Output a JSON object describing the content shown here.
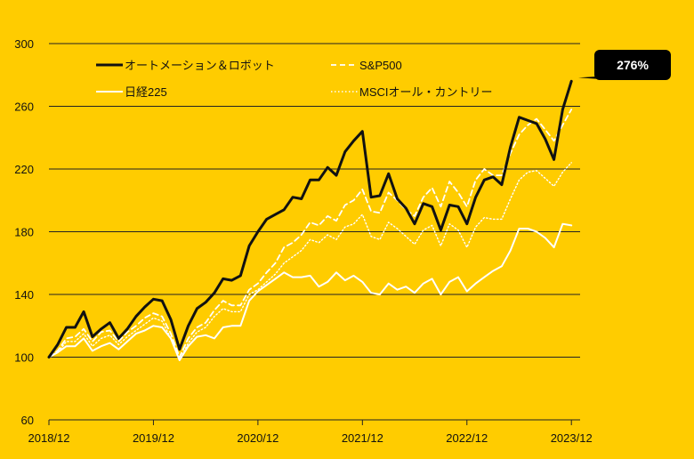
{
  "chart_data": {
    "type": "line",
    "title": "",
    "xlabel": "",
    "ylabel": "",
    "ylim": [
      60,
      300
    ],
    "yticks": [
      60,
      100,
      140,
      180,
      220,
      260,
      300
    ],
    "xlim": [
      0,
      61
    ],
    "xticks": [
      {
        "label": "2018/12",
        "x": 0
      },
      {
        "label": "2019/12",
        "x": 12
      },
      {
        "label": "2020/12",
        "x": 24
      },
      {
        "label": "2021/12",
        "x": 36
      },
      {
        "label": "2022/12",
        "x": 48
      },
      {
        "label": "2023/12",
        "x": 60
      }
    ],
    "grid": "horizontal",
    "legend_position": "top",
    "annotation": {
      "text": "276%",
      "series": "オートメーション＆ロボット",
      "x": 61,
      "y": 276
    },
    "series": [
      {
        "name": "オートメーション＆ロボット",
        "color": "#111111",
        "style": "solid-bold",
        "values": [
          100,
          108,
          119,
          119,
          129,
          113,
          118,
          122,
          112,
          118,
          126,
          132,
          137,
          136,
          124,
          105,
          120,
          131,
          135,
          141,
          150,
          149,
          152,
          171,
          180,
          188,
          191,
          194,
          202,
          201,
          213,
          213,
          221,
          216,
          231,
          238,
          244,
          202,
          203,
          217,
          201,
          195,
          185,
          198,
          196,
          181,
          197,
          196,
          185,
          202,
          213,
          215,
          210,
          234,
          253,
          251,
          249,
          239,
          226,
          258,
          276
        ]
      },
      {
        "name": "S&P500",
        "color": "#ffffff",
        "style": "dashed",
        "values": [
          100,
          104,
          112,
          113,
          118,
          110,
          116,
          117,
          110,
          116,
          120,
          125,
          128,
          126,
          115,
          100,
          112,
          119,
          122,
          130,
          136,
          133,
          133,
          143,
          147,
          154,
          160,
          170,
          173,
          178,
          186,
          184,
          190,
          187,
          197,
          200,
          207,
          193,
          192,
          205,
          200,
          194,
          190,
          202,
          208,
          196,
          212,
          205,
          196,
          213,
          220,
          216,
          216,
          230,
          242,
          248,
          252,
          245,
          238,
          248,
          258
        ]
      },
      {
        "name": "日経225",
        "color": "#ffffff",
        "style": "solid",
        "values": [
          100,
          103,
          107,
          107,
          112,
          104,
          107,
          109,
          105,
          110,
          115,
          117,
          120,
          119,
          112,
          98,
          107,
          113,
          114,
          112,
          119,
          120,
          120,
          136,
          142,
          146,
          150,
          154,
          151,
          151,
          152,
          145,
          148,
          154,
          149,
          152,
          148,
          141,
          140,
          147,
          143,
          145,
          141,
          147,
          150,
          140,
          148,
          151,
          142,
          147,
          151,
          155,
          158,
          168,
          182,
          182,
          180,
          176,
          170,
          185,
          184
        ]
      },
      {
        "name": "MSCIオール・カントリー",
        "color": "#ffffff",
        "style": "dotted",
        "values": [
          100,
          103,
          110,
          110,
          115,
          107,
          112,
          114,
          108,
          113,
          117,
          121,
          125,
          123,
          112,
          98,
          109,
          116,
          119,
          126,
          131,
          129,
          129,
          140,
          143,
          148,
          153,
          160,
          164,
          168,
          175,
          173,
          178,
          175,
          183,
          185,
          191,
          177,
          175,
          186,
          182,
          177,
          172,
          181,
          184,
          171,
          185,
          181,
          170,
          183,
          189,
          188,
          188,
          201,
          213,
          218,
          219,
          214,
          209,
          218,
          224
        ]
      }
    ]
  }
}
